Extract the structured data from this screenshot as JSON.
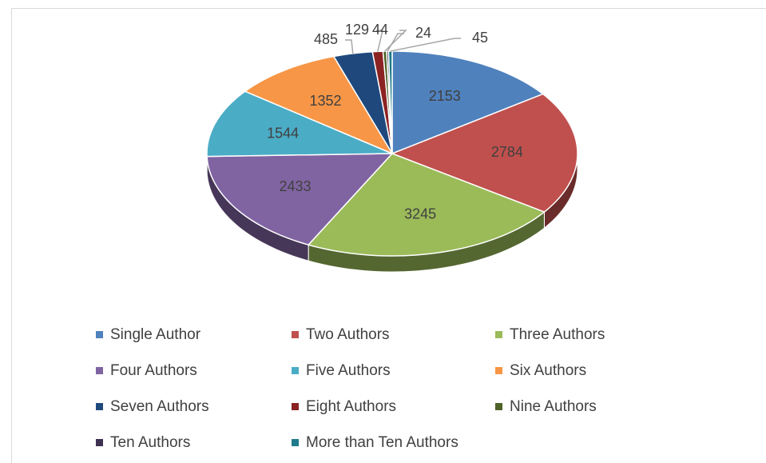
{
  "chart_data": {
    "type": "pie3d",
    "categories": [
      "Single Author",
      "Two Authors",
      "Three Authors",
      "Four Authors",
      "Five Authors",
      "Six Authors",
      "Seven Authors",
      "Eight Authors",
      "Nine Authors",
      "Ten Authors",
      "More than Ten Authors"
    ],
    "values": [
      2153,
      2784,
      3245,
      2433,
      1544,
      1352,
      485,
      129,
      44,
      24,
      45
    ],
    "colors": [
      "#4f81bd",
      "#c0504d",
      "#9bbb59",
      "#8064a2",
      "#4bacc6",
      "#f79646",
      "#1f497d",
      "#8b2323",
      "#4f6228",
      "#3f3151",
      "#1f7a8c"
    ],
    "legend": "bottom"
  }
}
